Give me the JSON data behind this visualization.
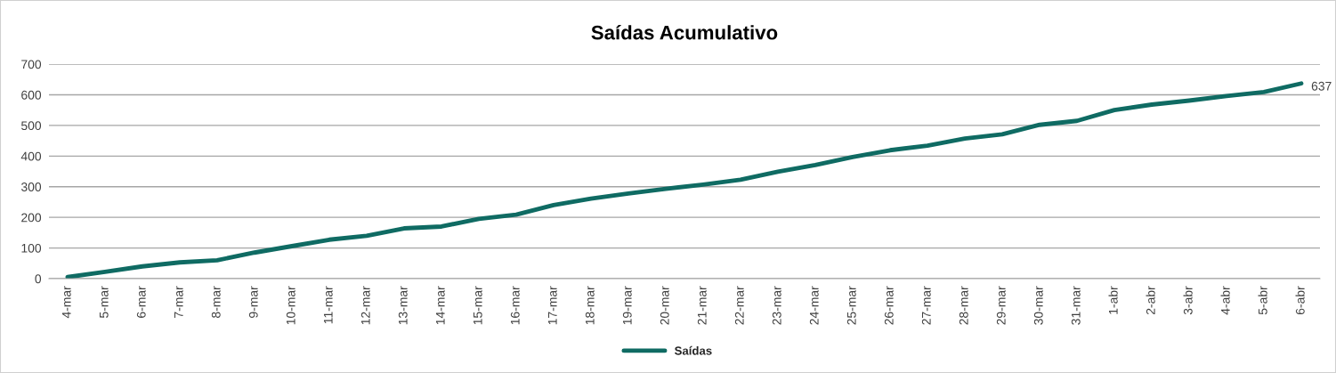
{
  "chart_data": {
    "type": "line",
    "title": "Saídas Acumulativo",
    "categories": [
      "4-mar",
      "5-mar",
      "6-mar",
      "7-mar",
      "8-mar",
      "9-mar",
      "10-mar",
      "11-mar",
      "12-mar",
      "13-mar",
      "14-mar",
      "15-mar",
      "16-mar",
      "17-mar",
      "18-mar",
      "19-mar",
      "20-mar",
      "21-mar",
      "22-mar",
      "23-mar",
      "24-mar",
      "25-mar",
      "26-mar",
      "27-mar",
      "28-mar",
      "29-mar",
      "30-mar",
      "31-mar",
      "1-abr",
      "2-abr",
      "3-abr",
      "4-abr",
      "5-abr",
      "6-abr"
    ],
    "series": [
      {
        "name": "Saídas",
        "color": "#0f6b63",
        "values": [
          5,
          22,
          40,
          53,
          60,
          85,
          106,
          127,
          140,
          164,
          170,
          195,
          209,
          240,
          261,
          278,
          293,
          307,
          323,
          349,
          371,
          397,
          419,
          434,
          457,
          471,
          502,
          515,
          550,
          568,
          581,
          596,
          609,
          637
        ],
        "value_labels": [
          null,
          null,
          null,
          null,
          null,
          null,
          null,
          null,
          null,
          null,
          null,
          null,
          null,
          null,
          null,
          null,
          null,
          null,
          null,
          null,
          null,
          null,
          null,
          null,
          null,
          null,
          null,
          null,
          null,
          null,
          null,
          null,
          null,
          "637"
        ]
      }
    ],
    "ylim": [
      0,
      700
    ],
    "yticks": [
      0,
      100,
      200,
      300,
      400,
      500,
      600,
      700
    ],
    "grid": "y",
    "legend": "bottom",
    "line_style": "solid"
  }
}
